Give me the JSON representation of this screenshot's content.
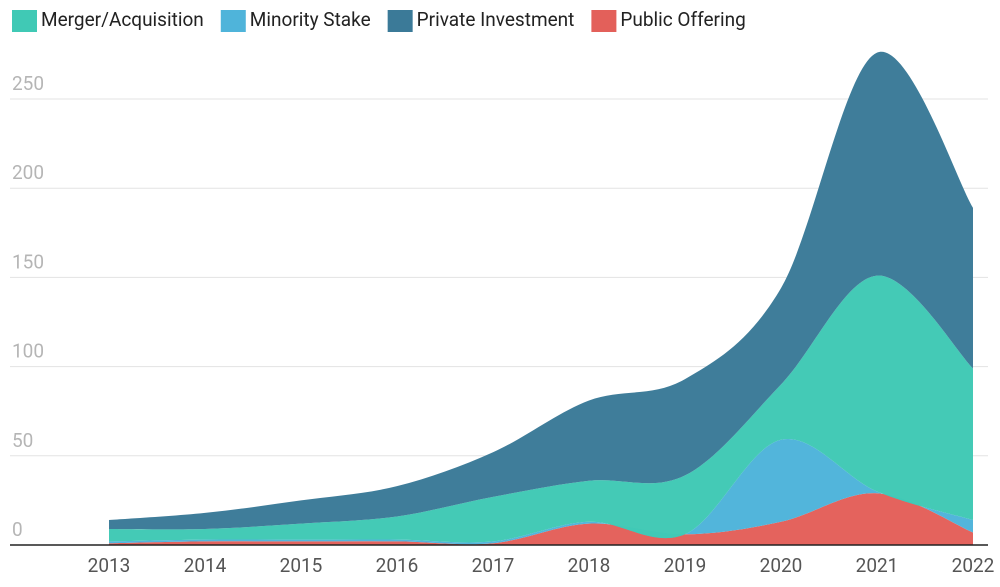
{
  "chart_data": {
    "type": "stacked_area",
    "categories": [
      "2013",
      "2014",
      "2015",
      "2016",
      "2017",
      "2018",
      "2019",
      "2020",
      "2021",
      "2022"
    ],
    "series": [
      {
        "name": "Public Offering",
        "color": "#e3605a",
        "values": [
          1,
          2,
          2,
          2,
          1,
          12,
          6,
          13,
          29,
          7
        ]
      },
      {
        "name": "Minority Stake",
        "color": "#4fb4da",
        "values": [
          1,
          1,
          1,
          1,
          1,
          1,
          0,
          46,
          1,
          7
        ]
      },
      {
        "name": "Merger/Acquisition",
        "color": "#40c9b5",
        "values": [
          7,
          6,
          9,
          13,
          25,
          23,
          33,
          31,
          121,
          85
        ]
      },
      {
        "name": "Private Investment",
        "color": "#3b7a98",
        "values": [
          5,
          9,
          13,
          17,
          25,
          45,
          54,
          54,
          125,
          90
        ]
      }
    ],
    "legend_order": [
      2,
      1,
      3,
      0
    ],
    "ylim": [
      0,
      280
    ],
    "yticks": [
      0,
      50,
      100,
      150,
      200,
      250
    ],
    "grid": true
  }
}
